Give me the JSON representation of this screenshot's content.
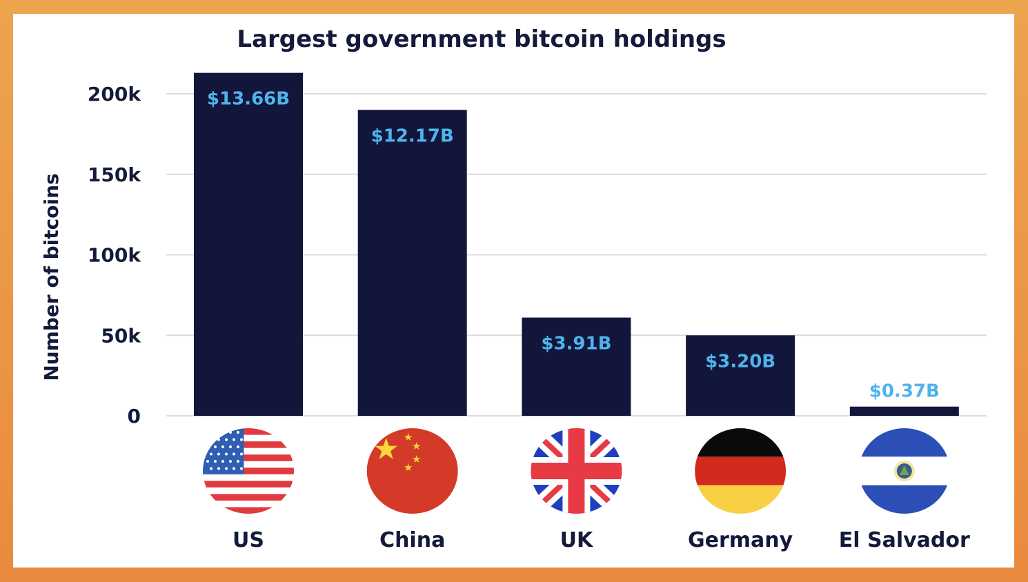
{
  "chart_data": {
    "type": "bar",
    "title": "Largest government bitcoin holdings",
    "xlabel": "",
    "ylabel": "Number of bitcoins",
    "ylim": [
      0,
      200000
    ],
    "yticks": [
      0,
      50000,
      100000,
      150000,
      200000
    ],
    "ytick_labels": [
      "0",
      "50k",
      "100k",
      "150k",
      "200k"
    ],
    "grid": true,
    "categories": [
      "US",
      "China",
      "UK",
      "Germany",
      "El Salvador"
    ],
    "values": [
      213000,
      190000,
      61000,
      50000,
      5700
    ],
    "data_labels": [
      "$13.66B",
      "$12.17B",
      "$3.91B",
      "$3.20B",
      "$0.37B"
    ],
    "flag_icons": [
      "us-flag-icon",
      "china-flag-icon",
      "uk-flag-icon",
      "germany-flag-icon",
      "el-salvador-flag-icon"
    ],
    "colors": {
      "bar": "#11163a",
      "label": "#4fb3ec",
      "text": "#131a3a",
      "grid": "#dcdcdc",
      "frame": "#eb9a47"
    }
  }
}
